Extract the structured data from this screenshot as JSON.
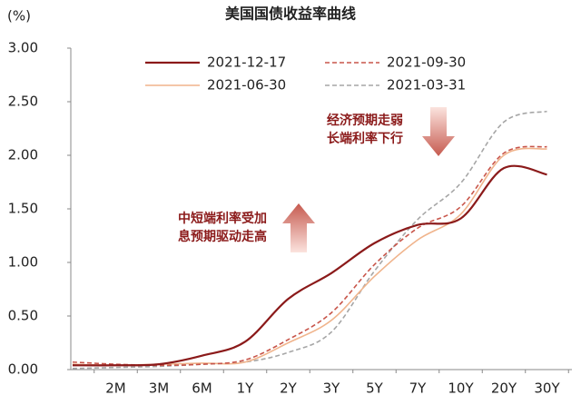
{
  "chart_data": {
    "type": "line",
    "title": "美国国债收益率曲线",
    "y_label": "(%)",
    "categories": [
      null,
      "2M",
      "3M",
      "6M",
      "1Y",
      "2Y",
      "3Y",
      "5Y",
      "7Y",
      "10Y",
      "20Y",
      "30Y"
    ],
    "series": [
      {
        "name": "2021-12-17",
        "color": "#8b1a1a",
        "dash": false,
        "values": [
          0.04,
          0.04,
          0.05,
          0.13,
          0.26,
          0.66,
          0.9,
          1.18,
          1.35,
          1.41,
          1.88,
          1.82
        ]
      },
      {
        "name": "2021-09-30",
        "color": "#c8554a",
        "dash": true,
        "values": [
          0.07,
          0.05,
          0.04,
          0.05,
          0.09,
          0.28,
          0.53,
          0.98,
          1.32,
          1.52,
          2.02,
          2.08
        ]
      },
      {
        "name": "2021-06-30",
        "color": "#f0b48c",
        "dash": false,
        "values": [
          0.05,
          0.04,
          0.05,
          0.06,
          0.07,
          0.25,
          0.46,
          0.87,
          1.21,
          1.45,
          2.0,
          2.06
        ]
      },
      {
        "name": "2021-03-31",
        "color": "#a6a6a6",
        "dash": true,
        "values": [
          0.01,
          0.02,
          0.03,
          0.05,
          0.07,
          0.16,
          0.35,
          0.92,
          1.4,
          1.74,
          2.31,
          2.41
        ]
      }
    ],
    "ylim": [
      0,
      3
    ],
    "yticks": [
      {
        "value": 0,
        "label": "0.00"
      },
      {
        "value": 0.5,
        "label": "0.50"
      },
      {
        "value": 1,
        "label": "1.00"
      },
      {
        "value": 1.5,
        "label": "1.50"
      },
      {
        "value": 2,
        "label": "2.00"
      },
      {
        "value": 2.5,
        "label": "2.50"
      },
      {
        "value": 3,
        "label": "3.00"
      }
    ],
    "annotations": [
      [
        "经济预期走弱",
        "长端利率下行"
      ],
      [
        "中短端利率受加",
        "息预期驱动走高"
      ]
    ]
  }
}
